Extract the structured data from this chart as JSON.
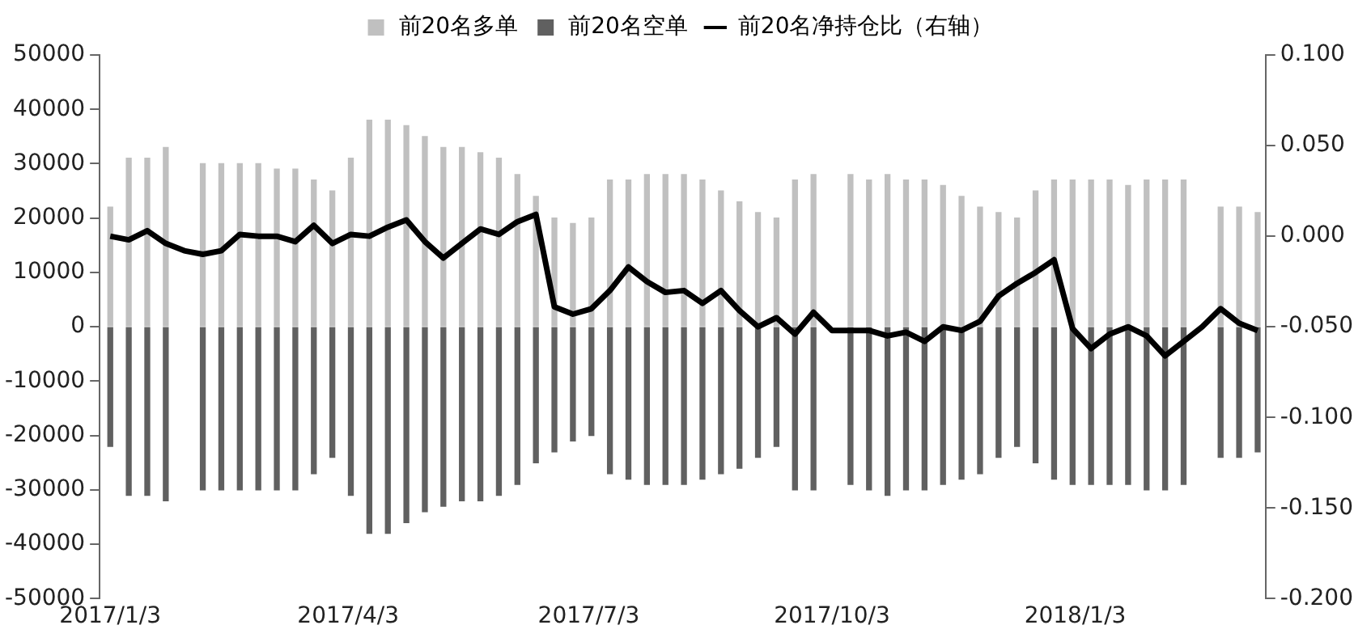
{
  "chart_data": {
    "type": "bar",
    "stacked": true,
    "legend": "top",
    "grid": false,
    "x": [
      "2017-01-03",
      "2017-01-10",
      "2017-01-17",
      "2017-01-24",
      "2017-01-31",
      "2017-02-07",
      "2017-02-14",
      "2017-02-21",
      "2017-02-28",
      "2017-03-07",
      "2017-03-14",
      "2017-03-21",
      "2017-03-28",
      "2017-04-04",
      "2017-04-11",
      "2017-04-18",
      "2017-04-25",
      "2017-05-02",
      "2017-05-09",
      "2017-05-16",
      "2017-05-23",
      "2017-05-30",
      "2017-06-06",
      "2017-06-13",
      "2017-06-20",
      "2017-06-27",
      "2017-07-04",
      "2017-07-11",
      "2017-07-18",
      "2017-07-25",
      "2017-08-01",
      "2017-08-08",
      "2017-08-15",
      "2017-08-22",
      "2017-08-29",
      "2017-09-05",
      "2017-09-12",
      "2017-09-19",
      "2017-09-26",
      "2017-10-03",
      "2017-10-10",
      "2017-10-17",
      "2017-10-24",
      "2017-10-31",
      "2017-11-07",
      "2017-11-14",
      "2017-11-21",
      "2017-11-28",
      "2017-12-05",
      "2017-12-12",
      "2017-12-19",
      "2017-12-26",
      "2018-01-02",
      "2018-01-09",
      "2018-01-16",
      "2018-01-23",
      "2018-01-30",
      "2018-02-06",
      "2018-02-13",
      "2018-02-20",
      "2018-02-27",
      "2018-03-06",
      "2018-03-13"
    ],
    "xlim": [
      "2016-12-30",
      "2018-03-16"
    ],
    "xticks": [
      {
        "value": "2017-01-03",
        "label": "2017/1/3"
      },
      {
        "value": "2017-04-03",
        "label": "2017/4/3"
      },
      {
        "value": "2017-07-03",
        "label": "2017/7/3"
      },
      {
        "value": "2017-10-03",
        "label": "2017/10/3"
      },
      {
        "value": "2018-01-03",
        "label": "2018/1/3"
      }
    ],
    "ylim": [
      -50000,
      50000
    ],
    "yticks": [
      -50000,
      -40000,
      -30000,
      -20000,
      -10000,
      0,
      10000,
      20000,
      30000,
      40000,
      50000
    ],
    "y2lim": [
      -0.2,
      0.1
    ],
    "y2ticks": [
      {
        "value": -0.2,
        "label": "-0.200"
      },
      {
        "value": -0.15,
        "label": "-0.150"
      },
      {
        "value": -0.1,
        "label": "-0.100"
      },
      {
        "value": -0.05,
        "label": "-0.050"
      },
      {
        "value": 0,
        "label": "0.000"
      },
      {
        "value": 0.05,
        "label": "0.050"
      },
      {
        "value": 0.1,
        "label": "0.100"
      }
    ],
    "series": [
      {
        "name": "前20名多单",
        "color": "#c0c0c0",
        "values": [
          22000,
          31000,
          31000,
          33000,
          null,
          30000,
          30000,
          30000,
          30000,
          29000,
          29000,
          27000,
          25000,
          31000,
          38000,
          38000,
          37000,
          35000,
          33000,
          33000,
          32000,
          31000,
          28000,
          24000,
          20000,
          19000,
          20000,
          27000,
          27000,
          28000,
          28000,
          28000,
          27000,
          25000,
          23000,
          21000,
          20000,
          27000,
          28000,
          null,
          28000,
          27000,
          28000,
          27000,
          27000,
          26000,
          24000,
          22000,
          21000,
          20000,
          25000,
          27000,
          27000,
          27000,
          27000,
          26000,
          27000,
          27000,
          27000,
          null,
          22000,
          22000,
          21000
        ]
      },
      {
        "name": "前20名空单",
        "color": "#606060",
        "values": [
          -22000,
          -31000,
          -31000,
          -32000,
          null,
          -30000,
          -30000,
          -30000,
          -30000,
          -30000,
          -30000,
          -27000,
          -24000,
          -31000,
          -38000,
          -38000,
          -36000,
          -34000,
          -33000,
          -32000,
          -32000,
          -31000,
          -29000,
          -25000,
          -23000,
          -21000,
          -20000,
          -27000,
          -28000,
          -29000,
          -29000,
          -29000,
          -28000,
          -27000,
          -26000,
          -24000,
          -22000,
          -30000,
          -30000,
          null,
          -29000,
          -30000,
          -31000,
          -30000,
          -30000,
          -29000,
          -28000,
          -27000,
          -24000,
          -22000,
          -25000,
          -28000,
          -29000,
          -29000,
          -29000,
          -29000,
          -30000,
          -30000,
          -29000,
          null,
          -24000,
          -24000,
          -23000
        ]
      },
      {
        "name": "前20名净持仓比（右轴）",
        "type": "line",
        "axis": "y2",
        "color": "#000000",
        "values": [
          0.0,
          -0.002,
          0.003,
          -0.004,
          -0.008,
          -0.01,
          -0.008,
          0.001,
          0.0,
          0.0,
          -0.003,
          0.006,
          -0.004,
          0.001,
          0.0,
          0.005,
          0.009,
          -0.003,
          -0.012,
          -0.004,
          0.004,
          0.001,
          0.008,
          0.012,
          -0.039,
          -0.043,
          -0.04,
          -0.03,
          -0.017,
          -0.025,
          -0.031,
          -0.03,
          -0.037,
          -0.03,
          -0.041,
          -0.05,
          -0.045,
          -0.054,
          -0.042,
          -0.052,
          -0.052,
          -0.052,
          -0.055,
          -0.053,
          -0.058,
          -0.05,
          -0.052,
          -0.047,
          -0.033,
          -0.026,
          -0.02,
          -0.013,
          -0.051,
          -0.062,
          -0.054,
          -0.05,
          -0.055,
          -0.066,
          -0.058,
          -0.05,
          -0.04,
          -0.048,
          -0.052
        ]
      }
    ]
  }
}
